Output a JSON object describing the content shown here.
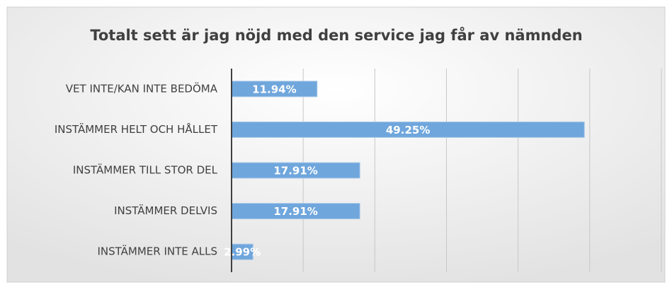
{
  "chart_data": {
    "type": "hbar",
    "title": "Totalt sett är jag nöjd med den service jag får av nämnden",
    "categories": [
      "VET INTE/KAN INTE BEDÖMA",
      "INSTÄMMER HELT OCH HÅLLET",
      "INSTÄMMER TILL STOR DEL",
      "INSTÄMMER DELVIS",
      "INSTÄMMER INTE ALLS"
    ],
    "values": [
      11.94,
      49.25,
      17.91,
      17.91,
      2.99
    ],
    "value_labels": [
      "11.94%",
      "49.25%",
      "17.91%",
      "17.91%",
      "2.99%"
    ],
    "color": "#6fa6dc",
    "xlim": [
      0,
      60
    ],
    "xticks": [
      0,
      10,
      20,
      30,
      40,
      50,
      60
    ],
    "grid": true
  }
}
